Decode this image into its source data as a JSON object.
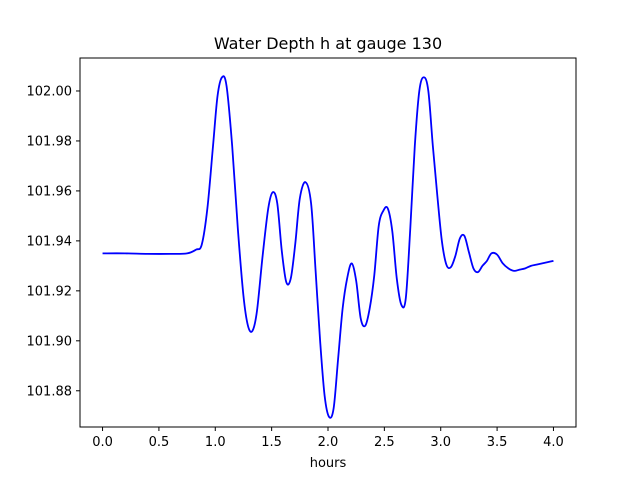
{
  "chart_data": {
    "type": "line",
    "title": "Water Depth h at gauge 130",
    "xlabel": "hours",
    "ylabel": "",
    "xlim": [
      -0.2,
      4.2
    ],
    "ylim": [
      101.8655,
      102.0132
    ],
    "xticks": [
      0.0,
      0.5,
      1.0,
      1.5,
      2.0,
      2.5,
      3.0,
      3.5,
      4.0
    ],
    "xtick_labels": [
      "0.0",
      "0.5",
      "1.0",
      "1.5",
      "2.0",
      "2.5",
      "3.0",
      "3.5",
      "4.0"
    ],
    "yticks": [
      101.88,
      101.9,
      101.92,
      101.94,
      101.96,
      101.98,
      102.0
    ],
    "ytick_labels": [
      "101.88",
      "101.90",
      "101.92",
      "101.94",
      "101.96",
      "101.98",
      "102.00"
    ],
    "grid": false,
    "series": [
      {
        "color": "#0000ff",
        "x": [
          0.0,
          0.2,
          0.4,
          0.6,
          0.75,
          0.83,
          0.88,
          0.93,
          0.98,
          1.02,
          1.06,
          1.1,
          1.15,
          1.2,
          1.25,
          1.29,
          1.33,
          1.37,
          1.42,
          1.47,
          1.51,
          1.55,
          1.59,
          1.63,
          1.67,
          1.71,
          1.75,
          1.8,
          1.85,
          1.89,
          1.93,
          1.97,
          2.01,
          2.05,
          2.09,
          2.13,
          2.17,
          2.21,
          2.25,
          2.29,
          2.33,
          2.37,
          2.41,
          2.45,
          2.49,
          2.53,
          2.57,
          2.61,
          2.65,
          2.69,
          2.73,
          2.77,
          2.81,
          2.85,
          2.89,
          2.93,
          2.97,
          3.01,
          3.05,
          3.09,
          3.13,
          3.17,
          3.21,
          3.25,
          3.29,
          3.33,
          3.37,
          3.41,
          3.45,
          3.5,
          3.55,
          3.6,
          3.65,
          3.7,
          3.75,
          3.8,
          3.85,
          3.9,
          3.95,
          4.0
        ],
        "y": [
          101.935,
          101.935,
          101.9348,
          101.9348,
          101.935,
          101.9365,
          101.9385,
          101.953,
          101.978,
          101.998,
          102.0055,
          102.002,
          101.978,
          101.945,
          101.918,
          101.906,
          101.904,
          101.912,
          101.934,
          101.953,
          101.9595,
          101.955,
          101.936,
          101.9235,
          101.925,
          101.939,
          101.957,
          101.9635,
          101.955,
          101.928,
          101.9,
          101.878,
          101.8695,
          101.873,
          101.893,
          101.913,
          101.925,
          101.931,
          101.924,
          101.909,
          101.906,
          101.913,
          101.926,
          101.946,
          101.952,
          101.953,
          101.944,
          101.925,
          101.9145,
          101.917,
          101.945,
          101.978,
          102.0,
          102.0055,
          102.0,
          101.978,
          101.958,
          101.94,
          101.9305,
          101.9295,
          101.934,
          101.941,
          101.942,
          101.9355,
          101.929,
          101.9275,
          101.93,
          101.932,
          101.935,
          101.9345,
          101.931,
          101.929,
          101.928,
          101.9285,
          101.929,
          101.93,
          101.9305,
          101.931,
          101.9315,
          101.932
        ]
      }
    ]
  }
}
